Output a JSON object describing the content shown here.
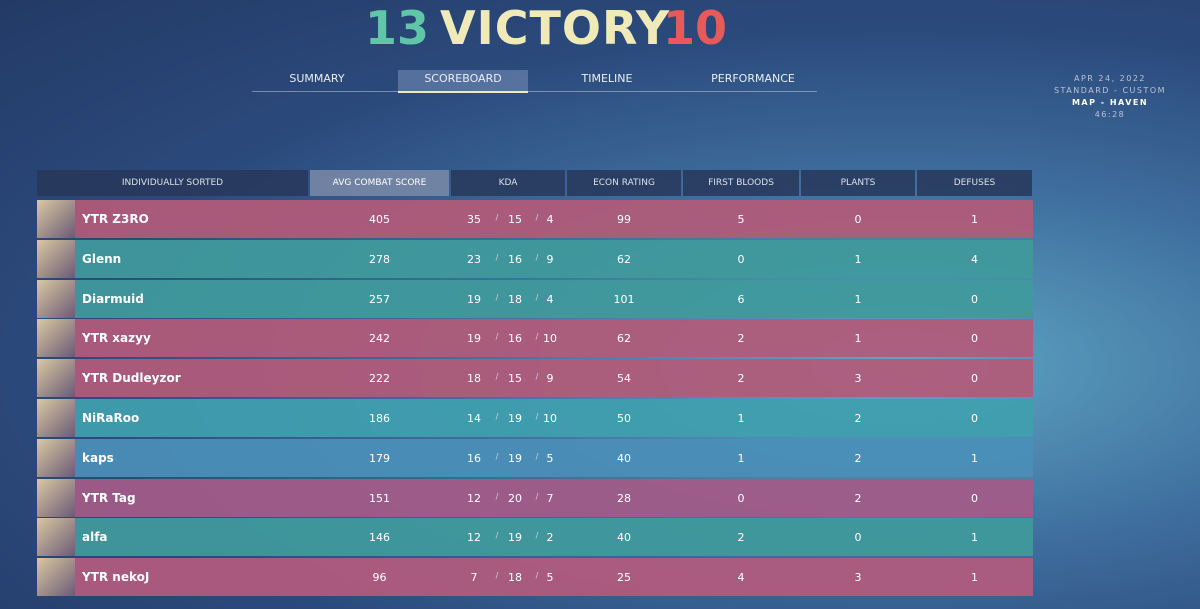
{
  "header": {
    "score_left": "13",
    "title": "VICTORY",
    "score_right": "10"
  },
  "tabs": [
    "SUMMARY",
    "SCOREBOARD",
    "TIMELINE",
    "PERFORMANCE"
  ],
  "active_tab": 1,
  "match_info": [
    "APR 24, 2022",
    "STANDARD - CUSTOM",
    "MAP - HAVEN",
    "46:28"
  ],
  "table": {
    "columns": [
      "INDIVIDUALLY SORTED",
      "AVG COMBAT SCORE",
      "KDA",
      "ECON RATING",
      "FIRST BLOODS",
      "PLANTS",
      "DEFUSES"
    ],
    "sorted_column": 1,
    "kda_separator": "/",
    "rows": [
      {
        "name": "YTR Z3RO",
        "acs": 405,
        "kills": 35,
        "deaths": 15,
        "assists": 4,
        "econ": 99,
        "first_bloods": 5,
        "plants": 0,
        "defuses": 1,
        "color": "#b35a78"
      },
      {
        "name": "Glenn",
        "acs": 278,
        "kills": 23,
        "deaths": 16,
        "assists": 9,
        "econ": 62,
        "first_bloods": 0,
        "plants": 1,
        "defuses": 4,
        "color": "#3f9a9c"
      },
      {
        "name": "Diarmuid",
        "acs": 257,
        "kills": 19,
        "deaths": 18,
        "assists": 4,
        "econ": 101,
        "first_bloods": 6,
        "plants": 1,
        "defuses": 0,
        "color": "#3f9a9c"
      },
      {
        "name": "YTR xazyy",
        "acs": 242,
        "kills": 19,
        "deaths": 16,
        "assists": 10,
        "econ": 62,
        "first_bloods": 2,
        "plants": 1,
        "defuses": 0,
        "color": "#b35a78"
      },
      {
        "name": "YTR Dudleyzor",
        "acs": 222,
        "kills": 18,
        "deaths": 15,
        "assists": 9,
        "econ": 54,
        "first_bloods": 2,
        "plants": 3,
        "defuses": 0,
        "color": "#b35a78"
      },
      {
        "name": "NiRaRoo",
        "acs": 186,
        "kills": 14,
        "deaths": 19,
        "assists": 10,
        "econ": 50,
        "first_bloods": 1,
        "plants": 2,
        "defuses": 0,
        "color": "#3f9fae"
      },
      {
        "name": "kaps",
        "acs": 179,
        "kills": 16,
        "deaths": 19,
        "assists": 5,
        "econ": 40,
        "first_bloods": 1,
        "plants": 2,
        "defuses": 1,
        "color": "#4a8fb8"
      },
      {
        "name": "YTR Tag",
        "acs": 151,
        "kills": 12,
        "deaths": 20,
        "assists": 7,
        "econ": 28,
        "first_bloods": 0,
        "plants": 2,
        "defuses": 0,
        "color": "#a45a88"
      },
      {
        "name": "alfa",
        "acs": 146,
        "kills": 12,
        "deaths": 19,
        "assists": 2,
        "econ": 40,
        "first_bloods": 2,
        "plants": 0,
        "defuses": 1,
        "color": "#3f9a9c"
      },
      {
        "name": "YTR nekoJ",
        "acs": 96,
        "kills": 7,
        "deaths": 18,
        "assists": 5,
        "econ": 25,
        "first_bloods": 4,
        "plants": 3,
        "defuses": 1,
        "color": "#b35a7e"
      }
    ]
  }
}
